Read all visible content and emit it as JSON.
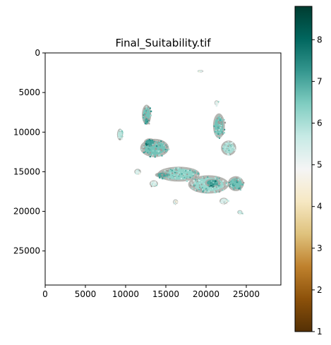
{
  "chart_data": {
    "type": "heatmap",
    "title": "Final_Suitability.tif",
    "xlabel": "",
    "ylabel": "",
    "x_ticks": [
      0,
      5000,
      10000,
      15000,
      20000,
      25000
    ],
    "y_ticks": [
      0,
      5000,
      10000,
      15000,
      20000,
      25000
    ],
    "xlim": [
      0,
      29300
    ],
    "ylim": [
      29300,
      0
    ],
    "y_inverted": true,
    "colormap": "BrBG",
    "colorbar": {
      "range": [
        1,
        8.8
      ],
      "ticks": [
        1,
        2,
        3,
        4,
        5,
        6,
        7,
        8
      ],
      "colors": [
        "#543005",
        "#8c510a",
        "#bf812d",
        "#dfc27d",
        "#f6e8c3",
        "#f5f5f5",
        "#c7eae5",
        "#80cdc1",
        "#35978f",
        "#01665e",
        "#003c30"
      ]
    },
    "regions": [
      {
        "cx": 12600,
        "cy": 7800,
        "rx": 550,
        "ry": 1200,
        "value": 6.6
      },
      {
        "cx": 13600,
        "cy": 12000,
        "rx": 1700,
        "ry": 1100,
        "value": 6.6
      },
      {
        "cx": 16600,
        "cy": 15300,
        "rx": 2500,
        "ry": 900,
        "value": 6.3
      },
      {
        "cx": 20300,
        "cy": 16600,
        "rx": 2400,
        "ry": 1100,
        "value": 6.2
      },
      {
        "cx": 23700,
        "cy": 16500,
        "rx": 950,
        "ry": 900,
        "value": 6.6
      },
      {
        "cx": 21600,
        "cy": 9200,
        "rx": 700,
        "ry": 1500,
        "value": 6.6
      },
      {
        "cx": 22800,
        "cy": 12000,
        "rx": 900,
        "ry": 900,
        "value": 6.0
      },
      {
        "cx": 9300,
        "cy": 10300,
        "rx": 350,
        "ry": 700,
        "value": 5.8
      },
      {
        "cx": 12600,
        "cy": 8600,
        "rx": 300,
        "ry": 450,
        "value": 7.0
      },
      {
        "cx": 13500,
        "cy": 16500,
        "rx": 500,
        "ry": 400,
        "value": 5.5
      },
      {
        "cx": 11500,
        "cy": 15000,
        "rx": 400,
        "ry": 350,
        "value": 5.4
      },
      {
        "cx": 24200,
        "cy": 20100,
        "rx": 300,
        "ry": 250,
        "value": 5.6
      },
      {
        "cx": 19300,
        "cy": 2300,
        "rx": 350,
        "ry": 150,
        "value": 5.3
      },
      {
        "cx": 20800,
        "cy": 16400,
        "rx": 900,
        "ry": 500,
        "value": 7.0
      },
      {
        "cx": 14600,
        "cy": 15400,
        "rx": 900,
        "ry": 350,
        "value": 7.0
      },
      {
        "cx": 16200,
        "cy": 18800,
        "rx": 300,
        "ry": 300,
        "value": 5.2
      },
      {
        "cx": 22200,
        "cy": 18700,
        "rx": 500,
        "ry": 400,
        "value": 5.4
      },
      {
        "cx": 21300,
        "cy": 6300,
        "rx": 250,
        "ry": 300,
        "value": 5.3
      },
      {
        "cx": 13000,
        "cy": 11300,
        "rx": 700,
        "ry": 500,
        "value": 7.1
      }
    ]
  }
}
